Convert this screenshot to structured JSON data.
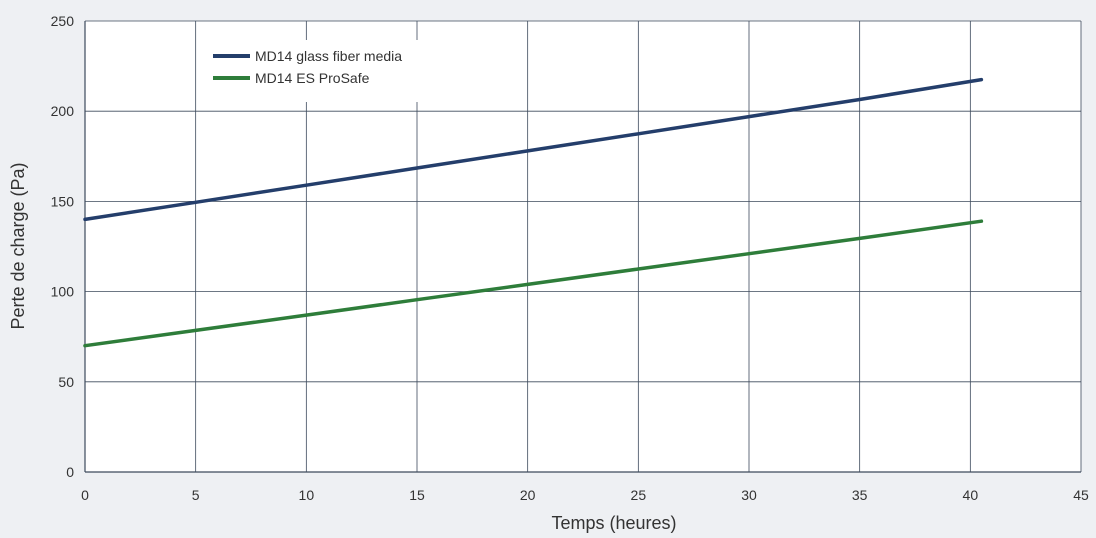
{
  "chart_data": {
    "type": "line",
    "xlabel": "Temps (heures)",
    "ylabel": "Perte de charge (Pa)",
    "xlim": [
      0,
      45
    ],
    "ylim": [
      0,
      250
    ],
    "xticks": [
      0,
      5,
      10,
      15,
      20,
      25,
      30,
      35,
      40,
      45
    ],
    "yticks": [
      0,
      50,
      100,
      150,
      200,
      250
    ],
    "grid": true,
    "legend_position": "top-left",
    "series": [
      {
        "name": "MD14 glass fiber media",
        "color": "#243e6b",
        "x": [
          0,
          5,
          10,
          15,
          20,
          25,
          30,
          35,
          40.5
        ],
        "y": [
          140,
          149.5,
          159,
          168.5,
          178,
          187.5,
          197,
          206.5,
          217.5
        ]
      },
      {
        "name": "MD14 ES ProSafe",
        "color": "#2e7d3a",
        "x": [
          0,
          5,
          10,
          15,
          20,
          25,
          30,
          35,
          40.5
        ],
        "y": [
          70,
          78.5,
          87,
          95.5,
          104,
          112.5,
          121,
          129.5,
          139
        ]
      }
    ]
  }
}
